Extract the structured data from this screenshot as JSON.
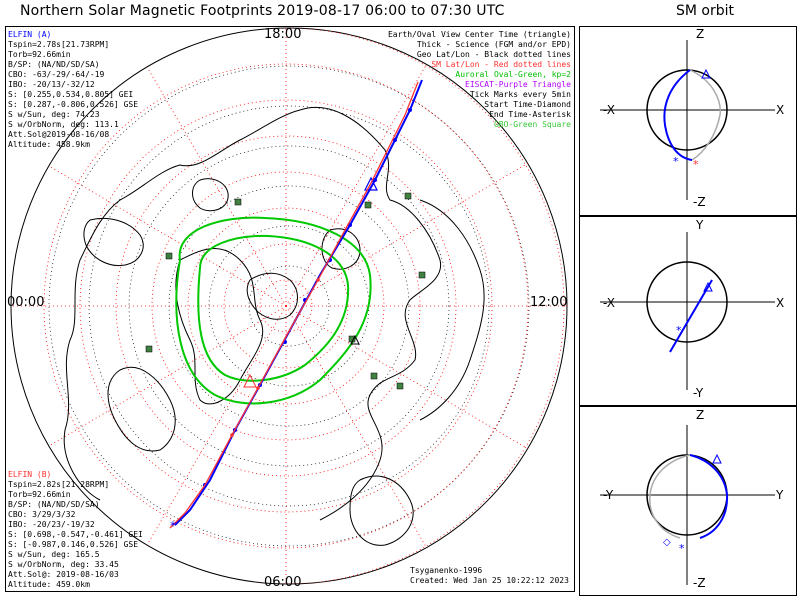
{
  "title": "Northern Solar Magnetic Footprints 2019-08-17 06:00 to 07:30 UTC",
  "orbit_title": "SM orbit",
  "elfin_a": {
    "label": "ELFIN (A)",
    "lines": [
      "Tspin=2.78s[21.73RPM]",
      "Torb=92.66min",
      "B/SP: (NA/ND/SD/SA)",
      "CBO: -63/-29/-64/-19",
      "IBO: -20/13/-32/12",
      "S: [0.255,0.534,0.805] GEI",
      "S: [0.287,-0.806,0.526] GSE",
      "S w/Sun, deg: 74.23",
      "S w/OrbNorm, deg: 113.1",
      "Att.Sol@2019-08-16/08",
      "Altitude: 458.9km"
    ],
    "color": "#0000ff"
  },
  "elfin_b": {
    "label": "ELFIN (B)",
    "lines": [
      "Tspin=2.82s[21.28RPM]",
      "Torb=92.66min",
      "B/SP: (NA/ND/SD/SA)",
      "CBO: 3/29/3/32",
      "IBO: -20/23/-19/32",
      "S: [0.698,-0.547,-0.461] GEI",
      "S: [-0.987,0.146,0.526] GSE",
      "S w/Sun, deg: 165.5",
      "S w/OrbNorm, deg: 33.45",
      "Att.Sol@: 2019-08-16/03",
      "Altitude: 459.0km"
    ],
    "color": "#ff3030"
  },
  "legend": [
    {
      "text": "Earth/Oval View Center Time (triangle)",
      "color": "#000000"
    },
    {
      "text": "Thick - Science (FGM and/or EPD)",
      "color": "#000000"
    },
    {
      "text": "Geo Lat/Lon - Black dotted lines",
      "color": "#000000"
    },
    {
      "text": "SM Lat/Lon - Red dotted lines",
      "color": "#ff0000"
    },
    {
      "text": "Auroral Oval-Green, kp=2",
      "color": "#00c000"
    },
    {
      "text": "EISCAT-Purple Triangle",
      "color": "#b000ff"
    },
    {
      "text": "Tick Marks every 5min",
      "color": "#000000"
    },
    {
      "text": "Start Time-Diamond",
      "color": "#000000"
    },
    {
      "text": "End Time-Asterisk",
      "color": "#000000"
    },
    {
      "text": "GBO-Green Square",
      "color": "#38c838"
    }
  ],
  "clock_labels": {
    "top": "18:00",
    "left": "00:00",
    "right": "12:00",
    "bottom": "06:00"
  },
  "credit": {
    "author": "Tsyganenko-1996",
    "created": "Created: Wed Jan 25 10:22:12 2023"
  },
  "orbit_panels": [
    {
      "top": "Z",
      "bottom": "-Z",
      "left": "-X",
      "right": "X"
    },
    {
      "top": "Y",
      "bottom": "-Y",
      "left": "-X",
      "right": "X"
    },
    {
      "top": "Z",
      "bottom": "-Z",
      "left": "-Y",
      "right": "Y"
    }
  ],
  "colors": {
    "elfin_a": "#0000ff",
    "elfin_b": "#ff3030",
    "sm_grid": "#ff0000",
    "oval": "#00c800",
    "gbo": "#408040",
    "grid": "#000000"
  }
}
